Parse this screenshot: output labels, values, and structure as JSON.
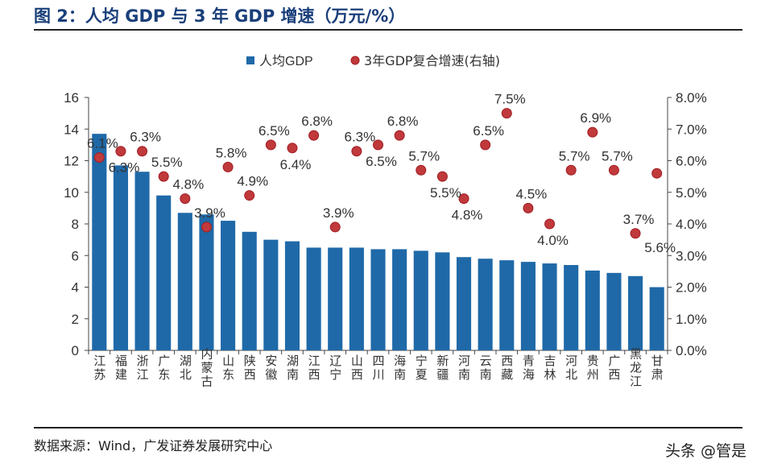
{
  "header": {
    "title": "图 2：人均 GDP 与 3 年 GDP 增速（万元/%）"
  },
  "footer": {
    "source": "数据来源：Wind，广发证券发展研究中心",
    "watermark": "头条 @管是"
  },
  "colors": {
    "bar": "#1f69a8",
    "dot": "#c0393b",
    "dot_border": "#a01c22",
    "title": "#1a3f7a"
  },
  "chart_data": {
    "type": "bar+scatter",
    "categories": [
      "江苏",
      "福建",
      "浙江",
      "广东",
      "湖北",
      "内蒙古",
      "山东",
      "陕西",
      "安徽",
      "湖南",
      "江西",
      "辽宁",
      "山西",
      "四川",
      "海南",
      "宁夏",
      "新疆",
      "河南",
      "云南",
      "西藏",
      "青海",
      "吉林",
      "河北",
      "贵州",
      "广西",
      "黑龙江",
      "甘肃"
    ],
    "series": [
      {
        "name": "人均GDP",
        "axis": "left",
        "type": "bar",
        "values": [
          13.7,
          11.7,
          11.3,
          9.8,
          8.7,
          8.6,
          8.2,
          7.5,
          7.0,
          6.9,
          6.5,
          6.5,
          6.5,
          6.4,
          6.4,
          6.3,
          6.2,
          5.9,
          5.8,
          5.7,
          5.6,
          5.5,
          5.4,
          5.05,
          4.9,
          4.7,
          4.0
        ]
      },
      {
        "name": "3年GDP复合增速(右轴)",
        "axis": "right",
        "type": "scatter",
        "values": [
          6.1,
          6.3,
          6.3,
          5.5,
          4.8,
          3.9,
          5.8,
          4.9,
          6.5,
          6.4,
          6.8,
          3.9,
          6.3,
          6.5,
          6.8,
          5.7,
          5.5,
          4.8,
          6.5,
          7.5,
          4.5,
          4.0,
          5.7,
          6.9,
          5.7,
          3.7,
          5.6
        ],
        "labels": [
          "6.1%",
          "6.3%",
          "6.3%",
          "5.5%",
          "4.8%",
          "3.9%",
          "5.8%",
          "4.9%",
          "6.5%",
          "6.4%",
          "6.8%",
          "3.9%",
          "6.3%",
          "6.5%",
          "6.8%",
          "5.7%",
          "5.5%",
          "4.8%",
          "6.5%",
          "7.5%",
          "4.5%",
          "4.0%",
          "5.7%",
          "6.9%",
          "5.7%",
          "3.7%",
          "5.6%"
        ]
      }
    ],
    "ylim": [
      0,
      16
    ],
    "yticks": [
      "0",
      "2",
      "4",
      "6",
      "8",
      "10",
      "12",
      "14",
      "16"
    ],
    "y2lim": [
      0,
      8
    ],
    "y2ticks": [
      "0.0%",
      "1.0%",
      "2.0%",
      "3.0%",
      "4.0%",
      "5.0%",
      "6.0%",
      "7.0%",
      "8.0%"
    ],
    "legend": "top"
  }
}
